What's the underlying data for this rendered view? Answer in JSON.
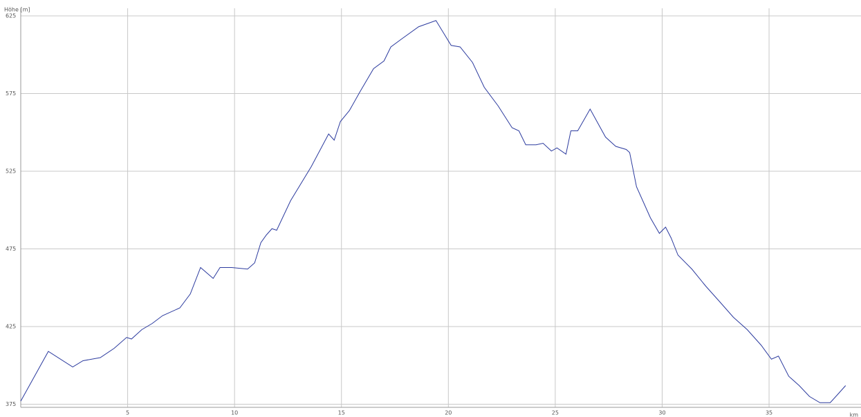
{
  "chart_data": {
    "type": "line",
    "ylabel": "Höhe [m]",
    "xlabel": "km",
    "x": [
      0,
      1.29,
      2.43,
      2.91,
      3.72,
      4.37,
      4.95,
      5.18,
      5.66,
      6.15,
      6.63,
      7.44,
      7.93,
      8.41,
      9.0,
      9.32,
      9.87,
      10.61,
      10.94,
      11.23,
      11.49,
      11.75,
      11.97,
      12.62,
      13.59,
      14.4,
      14.66,
      14.95,
      15.37,
      15.86,
      16.5,
      16.99,
      17.31,
      17.8,
      18.61,
      19.42,
      20.13,
      20.55,
      21.13,
      21.68,
      22.33,
      22.98,
      23.3,
      23.62,
      24.1,
      24.43,
      24.82,
      25.08,
      25.5,
      25.73,
      26.05,
      26.63,
      27.35,
      27.83,
      28.32,
      28.48,
      28.8,
      29.45,
      29.87,
      30.16,
      30.42,
      30.74,
      31.39,
      32.04,
      32.69,
      33.33,
      33.98,
      34.63,
      35.11,
      35.44,
      35.92,
      36.41,
      36.89,
      37.38,
      37.86,
      38.19,
      38.58
    ],
    "series": [
      {
        "name": "Höhe",
        "color": "#2b3a9e",
        "values": [
          377,
          409,
          399,
          403,
          405,
          411,
          418,
          417,
          423,
          427,
          432,
          437,
          446,
          463,
          456,
          463,
          463,
          462,
          466,
          479,
          484,
          488,
          487,
          506,
          528,
          549,
          545,
          557,
          564,
          576,
          591,
          596,
          605,
          610,
          618,
          622,
          606,
          605,
          595,
          579,
          567,
          553,
          551,
          542,
          542,
          543,
          538,
          540,
          536,
          551,
          551,
          565,
          547,
          541,
          539,
          537,
          515,
          495,
          485,
          489,
          482,
          471,
          462,
          451,
          441,
          431,
          423,
          413,
          404,
          406,
          393,
          387,
          380,
          376,
          376,
          381,
          387
        ]
      }
    ],
    "xlim": [
      0,
      39.3
    ],
    "ylim": [
      373,
      625
    ],
    "xticks": [
      5,
      10,
      15,
      20,
      25,
      30,
      35
    ],
    "yticks": [
      375,
      425,
      475,
      525,
      575,
      625
    ],
    "grid": true
  }
}
